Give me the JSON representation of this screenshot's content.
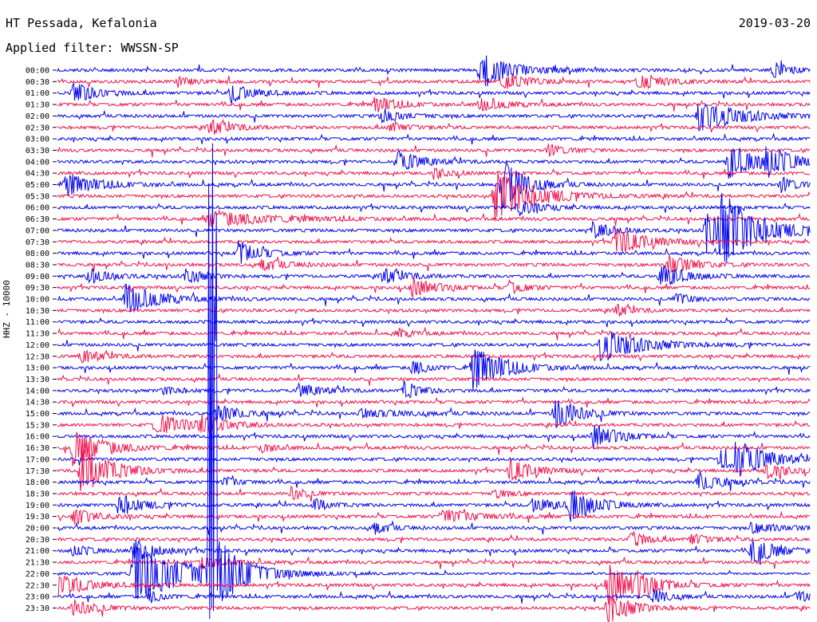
{
  "header": {
    "station": "HT Pessada, Kefalonia",
    "date": "2019-03-20",
    "filter": "Applied filter: WWSSN-SP"
  },
  "chart_data": {
    "type": "line",
    "title": "",
    "ylabel": "HHZ - 10000",
    "time_labels": [
      "00:00",
      "00:30",
      "01:00",
      "01:30",
      "02:00",
      "02:30",
      "03:00",
      "03:30",
      "04:00",
      "04:30",
      "05:00",
      "05:30",
      "06:00",
      "06:30",
      "07:00",
      "07:30",
      "08:00",
      "08:30",
      "09:00",
      "09:30",
      "10:00",
      "10:30",
      "11:00",
      "11:30",
      "12:00",
      "12:30",
      "13:00",
      "13:30",
      "14:00",
      "14:30",
      "15:00",
      "15:30",
      "16:00",
      "16:30",
      "17:00",
      "17:30",
      "18:00",
      "18:30",
      "19:00",
      "19:30",
      "20:00",
      "20:30",
      "21:00",
      "21:30",
      "22:00",
      "22:30",
      "23:00",
      "23:30"
    ],
    "trace_minutes_per_line": 30,
    "colors": [
      "#0000ee",
      "#f0104a"
    ],
    "events": [
      {
        "line": 0,
        "t": 0.56,
        "amp": 22,
        "dur": 0.04
      },
      {
        "line": 0,
        "t": 0.95,
        "amp": 10,
        "dur": 0.02
      },
      {
        "line": 1,
        "t": 0.59,
        "amp": 12,
        "dur": 0.03
      },
      {
        "line": 1,
        "t": 0.77,
        "amp": 10,
        "dur": 0.03
      },
      {
        "line": 1,
        "t": 0.16,
        "amp": 6,
        "dur": 0.02
      },
      {
        "line": 2,
        "t": 0.02,
        "amp": 14,
        "dur": 0.03
      },
      {
        "line": 2,
        "t": 0.23,
        "amp": 12,
        "dur": 0.03
      },
      {
        "line": 3,
        "t": 0.42,
        "amp": 10,
        "dur": 0.03
      },
      {
        "line": 3,
        "t": 0.56,
        "amp": 9,
        "dur": 0.03
      },
      {
        "line": 4,
        "t": 0.85,
        "amp": 22,
        "dur": 0.05
      },
      {
        "line": 4,
        "t": 0.43,
        "amp": 8,
        "dur": 0.03
      },
      {
        "line": 5,
        "t": 0.2,
        "amp": 10,
        "dur": 0.03
      },
      {
        "line": 5,
        "t": 0.44,
        "amp": 8,
        "dur": 0.02
      },
      {
        "line": 7,
        "t": 0.65,
        "amp": 8,
        "dur": 0.02
      },
      {
        "line": 8,
        "t": 0.45,
        "amp": 14,
        "dur": 0.03
      },
      {
        "line": 8,
        "t": 0.89,
        "amp": 22,
        "dur": 0.04
      },
      {
        "line": 8,
        "t": 0.94,
        "amp": 16,
        "dur": 0.03
      },
      {
        "line": 9,
        "t": 0.5,
        "amp": 7,
        "dur": 0.02
      },
      {
        "line": 10,
        "t": 0.01,
        "amp": 14,
        "dur": 0.04
      },
      {
        "line": 10,
        "t": 0.59,
        "amp": 32,
        "dur": 0.03
      },
      {
        "line": 10,
        "t": 0.96,
        "amp": 10,
        "dur": 0.02
      },
      {
        "line": 11,
        "t": 0.58,
        "amp": 32,
        "dur": 0.05
      },
      {
        "line": 11,
        "t": 1.0,
        "amp": 12,
        "dur": 0.03
      },
      {
        "line": 12,
        "t": 0.61,
        "amp": 10,
        "dur": 0.03
      },
      {
        "line": 13,
        "t": 0.2,
        "amp": 10,
        "dur": 0.08
      },
      {
        "line": 14,
        "t": 0.86,
        "amp": 30,
        "dur": 0.04
      },
      {
        "line": 14,
        "t": 0.88,
        "amp": 32,
        "dur": 0.05
      },
      {
        "line": 14,
        "t": 0.71,
        "amp": 10,
        "dur": 0.03
      },
      {
        "line": 15,
        "t": 0.74,
        "amp": 16,
        "dur": 0.04
      },
      {
        "line": 16,
        "t": 0.24,
        "amp": 14,
        "dur": 0.03
      },
      {
        "line": 17,
        "t": 0.27,
        "amp": 8,
        "dur": 0.03
      },
      {
        "line": 17,
        "t": 0.81,
        "amp": 14,
        "dur": 0.03
      },
      {
        "line": 18,
        "t": 0.04,
        "amp": 10,
        "dur": 0.03
      },
      {
        "line": 18,
        "t": 0.17,
        "amp": 12,
        "dur": 0.02
      },
      {
        "line": 18,
        "t": 0.43,
        "amp": 10,
        "dur": 0.03
      },
      {
        "line": 18,
        "t": 0.8,
        "amp": 16,
        "dur": 0.03
      },
      {
        "line": 19,
        "t": 0.47,
        "amp": 12,
        "dur": 0.03
      },
      {
        "line": 19,
        "t": 0.6,
        "amp": 8,
        "dur": 0.02
      },
      {
        "line": 20,
        "t": 0.09,
        "amp": 20,
        "dur": 0.04
      },
      {
        "line": 20,
        "t": 0.82,
        "amp": 8,
        "dur": 0.02
      },
      {
        "line": 21,
        "t": 0.74,
        "amp": 8,
        "dur": 0.02
      },
      {
        "line": 23,
        "t": 0.45,
        "amp": 6,
        "dur": 0.02
      },
      {
        "line": 24,
        "t": 0.72,
        "amp": 22,
        "dur": 0.05
      },
      {
        "line": 25,
        "t": 0.03,
        "amp": 8,
        "dur": 0.03
      },
      {
        "line": 26,
        "t": 0.55,
        "amp": 28,
        "dur": 0.04
      },
      {
        "line": 26,
        "t": 0.47,
        "amp": 10,
        "dur": 0.02
      },
      {
        "line": 28,
        "t": 0.32,
        "amp": 8,
        "dur": 0.03
      },
      {
        "line": 28,
        "t": 0.46,
        "amp": 12,
        "dur": 0.02
      },
      {
        "line": 28,
        "t": 0.14,
        "amp": 6,
        "dur": 0.02
      },
      {
        "line": 30,
        "t": 0.21,
        "amp": 12,
        "dur": 0.03
      },
      {
        "line": 30,
        "t": 0.66,
        "amp": 20,
        "dur": 0.03
      },
      {
        "line": 30,
        "t": 0.4,
        "amp": 5,
        "dur": 0.06
      },
      {
        "line": 31,
        "t": 0.13,
        "amp": 14,
        "dur": 0.04
      },
      {
        "line": 31,
        "t": 0.19,
        "amp": 10,
        "dur": 0.03
      },
      {
        "line": 32,
        "t": 0.71,
        "amp": 16,
        "dur": 0.03
      },
      {
        "line": 33,
        "t": 0.02,
        "amp": 22,
        "dur": 0.04
      },
      {
        "line": 33,
        "t": 0.27,
        "amp": 6,
        "dur": 0.02
      },
      {
        "line": 34,
        "t": 0.88,
        "amp": 16,
        "dur": 0.03
      },
      {
        "line": 34,
        "t": 0.9,
        "amp": 18,
        "dur": 0.04
      },
      {
        "line": 35,
        "t": 0.03,
        "amp": 30,
        "dur": 0.04
      },
      {
        "line": 35,
        "t": 0.6,
        "amp": 14,
        "dur": 0.03
      },
      {
        "line": 35,
        "t": 0.94,
        "amp": 10,
        "dur": 0.03
      },
      {
        "line": 36,
        "t": 0.85,
        "amp": 12,
        "dur": 0.03
      },
      {
        "line": 36,
        "t": 0.22,
        "amp": 6,
        "dur": 0.02
      },
      {
        "line": 37,
        "t": 0.31,
        "amp": 8,
        "dur": 0.02
      },
      {
        "line": 37,
        "t": 0.58,
        "amp": 6,
        "dur": 0.02
      },
      {
        "line": 38,
        "t": 0.08,
        "amp": 14,
        "dur": 0.03
      },
      {
        "line": 38,
        "t": 0.34,
        "amp": 8,
        "dur": 0.02
      },
      {
        "line": 38,
        "t": 0.63,
        "amp": 10,
        "dur": 0.03
      },
      {
        "line": 38,
        "t": 0.68,
        "amp": 22,
        "dur": 0.03
      },
      {
        "line": 39,
        "t": 0.02,
        "amp": 10,
        "dur": 0.03
      },
      {
        "line": 39,
        "t": 0.51,
        "amp": 8,
        "dur": 0.05
      },
      {
        "line": 40,
        "t": 0.42,
        "amp": 8,
        "dur": 0.02
      },
      {
        "line": 40,
        "t": 0.92,
        "amp": 6,
        "dur": 0.05
      },
      {
        "line": 41,
        "t": 0.76,
        "amp": 12,
        "dur": 0.02
      },
      {
        "line": 41,
        "t": 0.84,
        "amp": 8,
        "dur": 0.02
      },
      {
        "line": 42,
        "t": 0.02,
        "amp": 8,
        "dur": 0.02
      },
      {
        "line": 42,
        "t": 0.1,
        "amp": 14,
        "dur": 0.03
      },
      {
        "line": 42,
        "t": 0.92,
        "amp": 18,
        "dur": 0.03
      },
      {
        "line": 43,
        "t": 0.19,
        "amp": 8,
        "dur": 0.03
      },
      {
        "line": 44,
        "t": 0.1,
        "amp": 34,
        "dur": 0.08
      },
      {
        "line": 45,
        "t": 0.0,
        "amp": 14,
        "dur": 0.04
      },
      {
        "line": 45,
        "t": 0.73,
        "amp": 26,
        "dur": 0.04
      },
      {
        "line": 45,
        "t": 0.77,
        "amp": 8,
        "dur": 0.02
      },
      {
        "line": 46,
        "t": 0.12,
        "amp": 8,
        "dur": 0.02
      },
      {
        "line": 46,
        "t": 0.79,
        "amp": 10,
        "dur": 0.02
      },
      {
        "line": 46,
        "t": 0.98,
        "amp": 8,
        "dur": 0.02
      },
      {
        "line": 47,
        "t": 0.02,
        "amp": 10,
        "dur": 0.03
      },
      {
        "line": 47,
        "t": 0.73,
        "amp": 20,
        "dur": 0.03
      }
    ],
    "big_event": {
      "line": 44,
      "t": 0.2,
      "amp_up": 580,
      "amp_down": 80
    }
  }
}
